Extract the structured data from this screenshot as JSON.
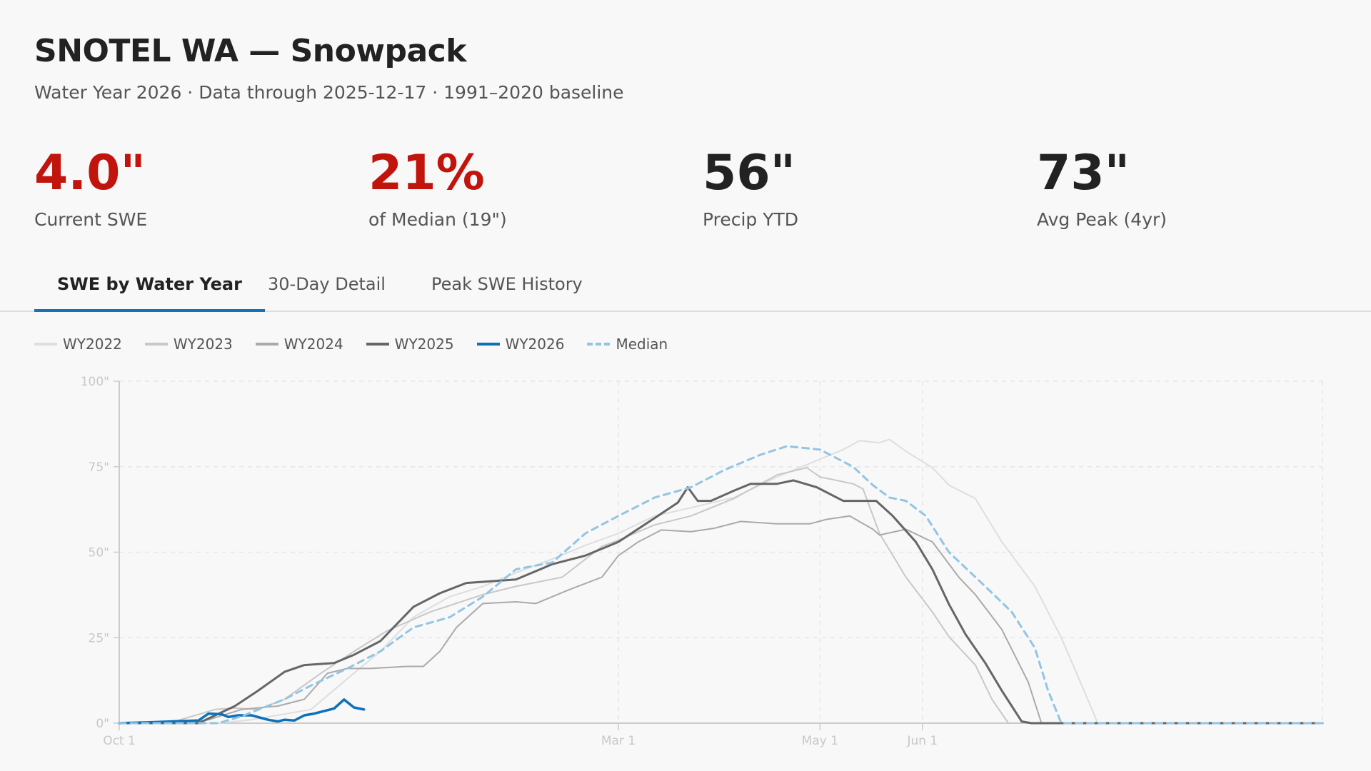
{
  "header": {
    "title": "SNOTEL WA — Snowpack",
    "subtitle": "Water Year 2026 · Data through 2025-12-17 · 1991–2020 baseline"
  },
  "metrics": [
    {
      "value": "4.0\"",
      "label": "Current SWE",
      "color": "#c0140c"
    },
    {
      "value": "21%",
      "label": "of Median (19\")",
      "color": "#c0140c"
    },
    {
      "value": "56\"",
      "label": "Precip YTD",
      "color": "#222222"
    },
    {
      "value": "73\"",
      "label": "Avg Peak (4yr)",
      "color": "#222222"
    }
  ],
  "tabs": [
    {
      "label": "SWE by Water Year",
      "active": true
    },
    {
      "label": "30-Day Detail",
      "active": false
    },
    {
      "label": "Peak SWE History",
      "active": false
    }
  ],
  "chart_data": {
    "type": "line",
    "title": "",
    "xlabel": "",
    "ylabel": "",
    "xlim": [
      "10-01",
      "09-30"
    ],
    "ylim": [
      0,
      100
    ],
    "y_ticks": [
      "0\"",
      "25\"",
      "50\"",
      "75\"",
      "100\""
    ],
    "y_tick_values": [
      0,
      25,
      50,
      75,
      100
    ],
    "x_ticks": [
      {
        "label": "Oct 1",
        "date": "10-01"
      },
      {
        "label": "Mar 1",
        "date": "03-01"
      },
      {
        "label": "May 1",
        "date": "05-01"
      },
      {
        "label": "Jun 1",
        "date": "06-01"
      }
    ],
    "grid": true,
    "legend_placement": "top-left",
    "series": [
      {
        "name": "WY2022",
        "color": "#dedede",
        "width": 2,
        "dashed": false,
        "points": [
          [
            "10-01",
            0
          ],
          [
            "10-31",
            0
          ],
          [
            "11-10",
            1
          ],
          [
            "11-28",
            4
          ],
          [
            "12-09",
            13
          ],
          [
            "12-19",
            21
          ],
          [
            "12-29",
            31
          ],
          [
            "01-09",
            37
          ],
          [
            "01-19",
            40
          ],
          [
            "01-29",
            44
          ],
          [
            "02-09",
            48
          ],
          [
            "02-19",
            52
          ],
          [
            "03-01",
            55.5
          ],
          [
            "03-12",
            60.6
          ],
          [
            "03-23",
            63
          ],
          [
            "04-05",
            66
          ],
          [
            "04-18",
            72
          ],
          [
            "04-28",
            76
          ],
          [
            "05-08",
            80
          ],
          [
            "05-13",
            82.6
          ],
          [
            "05-19",
            82
          ],
          [
            "05-22",
            83
          ],
          [
            "05-27",
            79.5
          ],
          [
            "06-04",
            74.7
          ],
          [
            "06-09",
            69.6
          ],
          [
            "06-17",
            65.7
          ],
          [
            "06-25",
            53
          ],
          [
            "07-05",
            40
          ],
          [
            "07-13",
            25
          ],
          [
            "07-21",
            7
          ],
          [
            "07-24",
            0
          ],
          [
            "09-30",
            0
          ]
        ]
      },
      {
        "name": "WY2023",
        "color": "#c8c8c8",
        "width": 2,
        "dashed": false,
        "points": [
          [
            "10-01",
            0
          ],
          [
            "10-16",
            0
          ],
          [
            "10-30",
            4
          ],
          [
            "11-05",
            4.4
          ],
          [
            "11-12",
            4
          ],
          [
            "11-20",
            7
          ],
          [
            "12-01",
            14.6
          ],
          [
            "12-11",
            21
          ],
          [
            "12-21",
            27
          ],
          [
            "01-03",
            32.5
          ],
          [
            "01-19",
            37.6
          ],
          [
            "01-29",
            40
          ],
          [
            "02-12",
            42.7
          ],
          [
            "02-24",
            51.7
          ],
          [
            "03-01",
            53.5
          ],
          [
            "03-12",
            58
          ],
          [
            "03-23",
            60.6
          ],
          [
            "04-05",
            65.7
          ],
          [
            "04-18",
            72.6
          ],
          [
            "04-27",
            74.7
          ],
          [
            "05-01",
            72
          ],
          [
            "05-11",
            70
          ],
          [
            "05-14",
            68.5
          ],
          [
            "05-19",
            55.5
          ],
          [
            "05-27",
            42.7
          ],
          [
            "06-04",
            32.5
          ],
          [
            "06-09",
            25.3
          ],
          [
            "06-17",
            17
          ],
          [
            "06-22",
            7
          ],
          [
            "06-27",
            0
          ],
          [
            "09-30",
            0
          ]
        ]
      },
      {
        "name": "WY2024",
        "color": "#aaaaaa",
        "width": 2,
        "dashed": false,
        "points": [
          [
            "10-01",
            0
          ],
          [
            "10-21",
            0
          ],
          [
            "10-28",
            1
          ],
          [
            "11-07",
            4
          ],
          [
            "11-18",
            5
          ],
          [
            "11-26",
            7
          ],
          [
            "12-03",
            14.6
          ],
          [
            "12-09",
            16
          ],
          [
            "12-16",
            16
          ],
          [
            "12-27",
            16.6
          ],
          [
            "01-01",
            16.6
          ],
          [
            "01-06",
            21
          ],
          [
            "01-11",
            28
          ],
          [
            "01-19",
            35
          ],
          [
            "01-29",
            35.5
          ],
          [
            "02-04",
            35
          ],
          [
            "02-14",
            39
          ],
          [
            "02-24",
            42.7
          ],
          [
            "03-01",
            49
          ],
          [
            "03-07",
            53
          ],
          [
            "03-14",
            56.5
          ],
          [
            "03-23",
            56
          ],
          [
            "03-30",
            57
          ],
          [
            "04-07",
            59
          ],
          [
            "04-18",
            58.3
          ],
          [
            "04-28",
            58.3
          ],
          [
            "05-03",
            59.6
          ],
          [
            "05-10",
            60.6
          ],
          [
            "05-17",
            56.7
          ],
          [
            "05-19",
            55
          ],
          [
            "05-27",
            56.7
          ],
          [
            "06-04",
            53
          ],
          [
            "06-12",
            42.7
          ],
          [
            "06-17",
            37.6
          ],
          [
            "06-25",
            27.4
          ],
          [
            "07-03",
            12
          ],
          [
            "07-07",
            0
          ],
          [
            "09-30",
            0
          ]
        ]
      },
      {
        "name": "WY2025",
        "color": "#666666",
        "width": 3,
        "dashed": false,
        "points": [
          [
            "10-01",
            0
          ],
          [
            "10-25",
            0
          ],
          [
            "11-05",
            5
          ],
          [
            "11-12",
            9.5
          ],
          [
            "11-20",
            15
          ],
          [
            "11-26",
            17
          ],
          [
            "12-05",
            17.6
          ],
          [
            "12-11",
            20
          ],
          [
            "12-19",
            24
          ],
          [
            "12-29",
            34
          ],
          [
            "01-06",
            38
          ],
          [
            "01-14",
            41
          ],
          [
            "01-29",
            42
          ],
          [
            "02-09",
            46.5
          ],
          [
            "02-19",
            49
          ],
          [
            "03-01",
            53
          ],
          [
            "03-12",
            60
          ],
          [
            "03-19",
            64.5
          ],
          [
            "03-22",
            69
          ],
          [
            "03-25",
            65
          ],
          [
            "03-29",
            65
          ],
          [
            "04-05",
            68
          ],
          [
            "04-10",
            70
          ],
          [
            "04-18",
            70
          ],
          [
            "04-23",
            71
          ],
          [
            "04-30",
            69
          ],
          [
            "05-08",
            65
          ],
          [
            "05-18",
            65
          ],
          [
            "05-23",
            60.6
          ],
          [
            "05-30",
            53
          ],
          [
            "06-04",
            45
          ],
          [
            "06-09",
            34.8
          ],
          [
            "06-14",
            26
          ],
          [
            "06-20",
            17.6
          ],
          [
            "06-25",
            9.5
          ],
          [
            "07-01",
            0.5
          ],
          [
            "07-04",
            0
          ],
          [
            "09-30",
            0
          ]
        ]
      },
      {
        "name": "WY2026",
        "color": "#0b72b8",
        "width": 3.5,
        "dashed": false,
        "points": [
          [
            "10-01",
            0
          ],
          [
            "10-11",
            0.3
          ],
          [
            "10-25",
            0.8
          ],
          [
            "10-28",
            2.8
          ],
          [
            "11-01",
            2.6
          ],
          [
            "11-03",
            1.8
          ],
          [
            "11-06",
            2.3
          ],
          [
            "11-10",
            2.3
          ],
          [
            "11-15",
            1
          ],
          [
            "11-18",
            0.5
          ],
          [
            "11-20",
            1
          ],
          [
            "11-23",
            0.8
          ],
          [
            "11-26",
            2.3
          ],
          [
            "11-29",
            2.8
          ],
          [
            "12-05",
            4.3
          ],
          [
            "12-08",
            6.9
          ],
          [
            "12-11",
            4.6
          ],
          [
            "12-14",
            4.0
          ]
        ]
      },
      {
        "name": "Median",
        "color": "#93c5e3",
        "width": 3,
        "dashed": true,
        "points": [
          [
            "10-01",
            0
          ],
          [
            "10-31",
            0
          ],
          [
            "11-07",
            2
          ],
          [
            "11-20",
            7
          ],
          [
            "11-28",
            11
          ],
          [
            "12-09",
            16
          ],
          [
            "12-19",
            21
          ],
          [
            "12-29",
            28
          ],
          [
            "01-09",
            31
          ],
          [
            "01-19",
            37
          ],
          [
            "01-29",
            45
          ],
          [
            "02-09",
            47
          ],
          [
            "02-19",
            55.5
          ],
          [
            "03-01",
            60.6
          ],
          [
            "03-12",
            66
          ],
          [
            "03-23",
            69
          ],
          [
            "04-02",
            74
          ],
          [
            "04-13",
            78.5
          ],
          [
            "04-21",
            81
          ],
          [
            "05-01",
            80
          ],
          [
            "05-11",
            75
          ],
          [
            "05-17",
            69.6
          ],
          [
            "05-22",
            66
          ],
          [
            "05-27",
            65
          ],
          [
            "06-02",
            60.6
          ],
          [
            "06-09",
            50
          ],
          [
            "06-20",
            40
          ],
          [
            "06-28",
            32.5
          ],
          [
            "07-05",
            22
          ],
          [
            "07-09",
            9.5
          ],
          [
            "07-13",
            0
          ],
          [
            "09-30",
            0
          ]
        ]
      }
    ]
  }
}
